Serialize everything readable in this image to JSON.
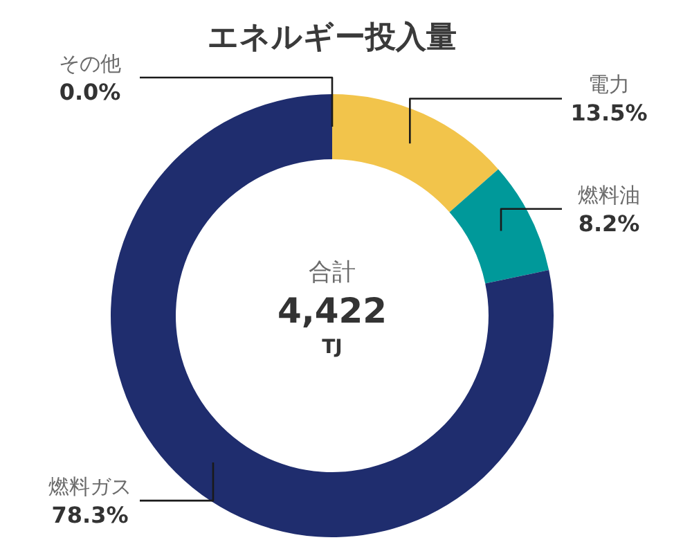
{
  "chart_data": {
    "type": "donut",
    "title": "エネルギー投入量",
    "categories": [
      "電力",
      "燃料油",
      "燃料ガス",
      "その他"
    ],
    "values": [
      13.5,
      8.2,
      78.3,
      0.0
    ],
    "colors": [
      "#f2c44b",
      "#00999a",
      "#1f2d6e",
      "#7f7f7f"
    ],
    "value_labels": [
      "13.5%",
      "8.2%",
      "78.3%",
      "0.0%"
    ],
    "annotations": [
      "合計",
      "4,422",
      "TJ"
    ]
  }
}
